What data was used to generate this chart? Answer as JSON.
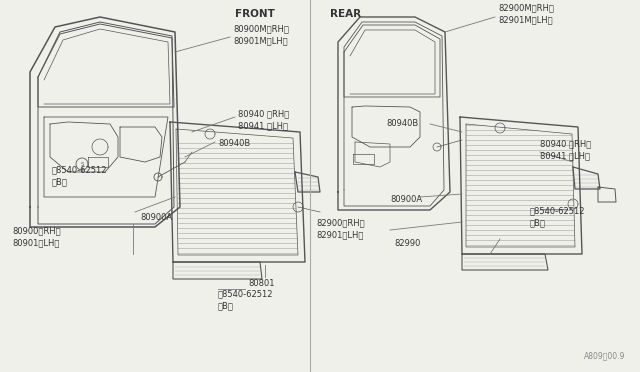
{
  "bg_color": "#f0f0eb",
  "line_color": "#555555",
  "text_color": "#333333",
  "fig_width": 6.4,
  "fig_height": 3.72,
  "dpi": 100,
  "front_label": "FRONT",
  "rear_label": "REAR",
  "watermark": "A809　00.9"
}
